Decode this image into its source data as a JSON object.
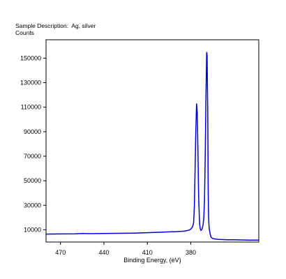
{
  "chart_data": {
    "type": "line",
    "header": {
      "sample_label": "Sample Description:",
      "sample_value": "Ag, silver",
      "y_unit": "Counts"
    },
    "xlabel": "Binding Energy, (eV)",
    "x_reversed": true,
    "xlim": [
      480,
      333
    ],
    "ylim": [
      0,
      165000
    ],
    "x_ticks": [
      470,
      440,
      410,
      380
    ],
    "y_ticks": [
      10000,
      30000,
      50000,
      70000,
      90000,
      110000,
      130000,
      150000
    ],
    "series_color": "#0000e0",
    "series": [
      {
        "x": [
          480,
          470,
          460,
          455,
          450,
          440,
          430,
          420,
          410,
          400,
          395,
          390,
          385,
          383,
          381,
          380,
          379,
          378.5,
          378,
          377.5,
          377,
          376.5,
          376,
          375.5,
          375,
          374.7,
          374.5,
          374.2,
          374,
          373.8,
          373.5,
          373.2,
          373,
          372.5,
          372,
          371.5,
          371,
          370.5,
          370,
          369.5,
          369,
          368.7,
          368.5,
          368.3,
          368.1,
          368,
          367.8,
          367.6,
          367.3,
          367,
          366.5,
          366,
          365,
          364,
          362,
          360,
          355,
          350,
          345,
          340,
          335,
          333
        ],
        "y": [
          6500,
          6600,
          6700,
          7000,
          6800,
          7000,
          7100,
          7300,
          7600,
          8000,
          8300,
          8500,
          8800,
          9200,
          9800,
          10500,
          12000,
          13500,
          16000,
          30000,
          60000,
          90000,
          113000,
          105000,
          70000,
          45000,
          35000,
          25000,
          18000,
          14000,
          11000,
          10000,
          9500,
          10000,
          11500,
          14000,
          20000,
          35000,
          70000,
          120000,
          155000,
          152000,
          130000,
          108000,
          70000,
          45000,
          28000,
          18000,
          12000,
          9000,
          6000,
          4000,
          3000,
          2600,
          2300,
          2100,
          1900,
          1800,
          1700,
          1600,
          1600,
          1600
        ]
      }
    ]
  }
}
